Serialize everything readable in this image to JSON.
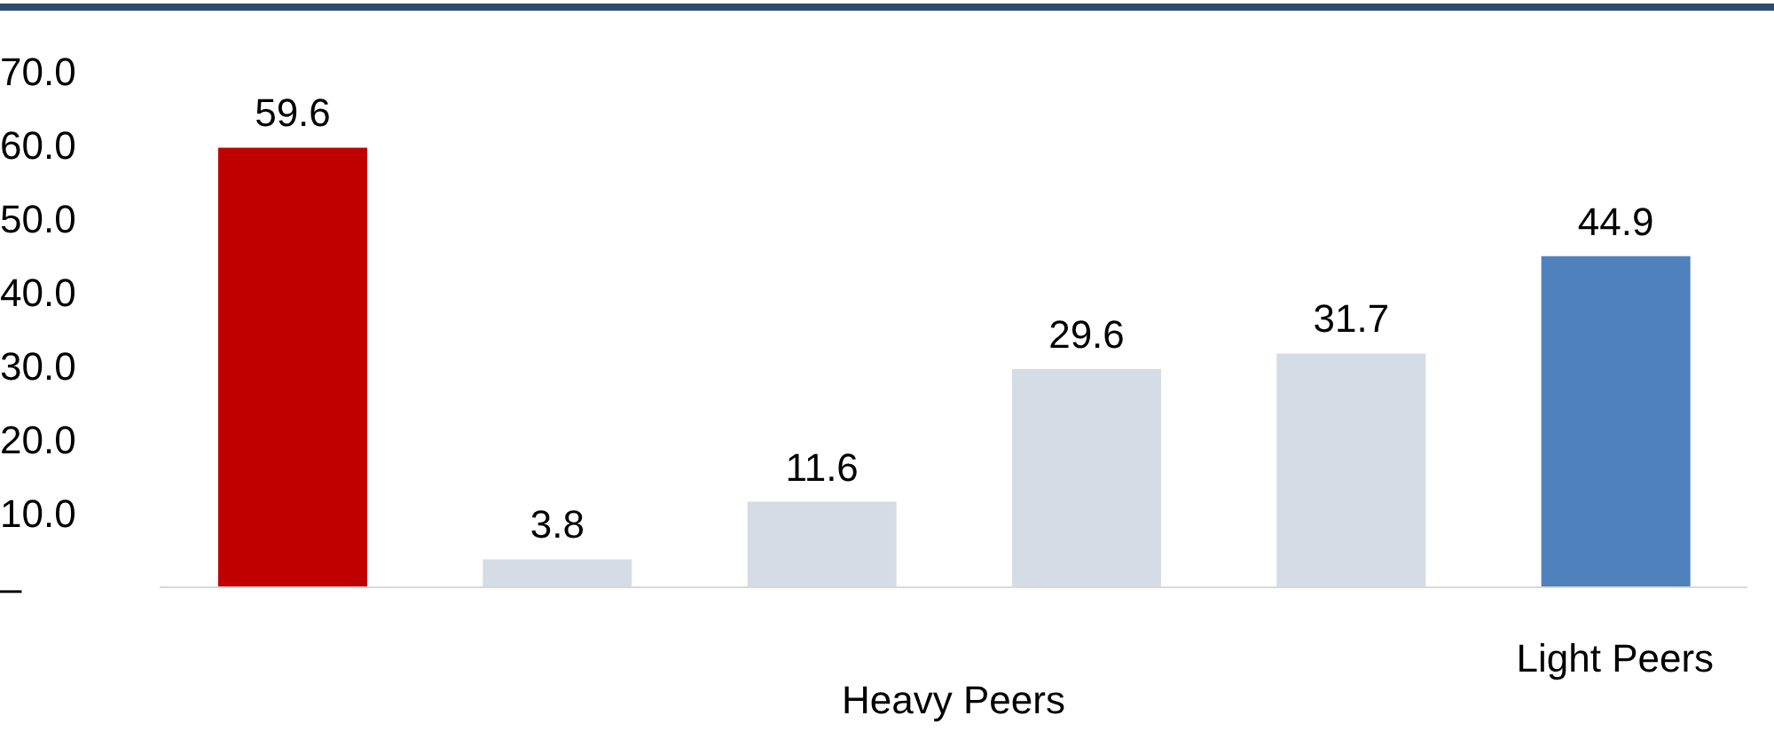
{
  "chart_data": {
    "type": "bar",
    "categories": [
      null,
      null,
      null,
      null,
      null,
      "Light Peers"
    ],
    "values": [
      59.6,
      3.8,
      11.6,
      29.6,
      31.7,
      44.9
    ],
    "colors": [
      "#c00000",
      "#d6dce5",
      "#d6dce5",
      "#d6dce5",
      "#d6dce5",
      "#4f81bd"
    ],
    "ylim": [
      0,
      70
    ],
    "yticks": [
      {
        "value": 0,
        "label": "–"
      },
      {
        "value": 10,
        "label": "10.0"
      },
      {
        "value": 20,
        "label": "20.0"
      },
      {
        "value": 30,
        "label": "30.0"
      },
      {
        "value": 40,
        "label": "40.0"
      },
      {
        "value": 50,
        "label": "50.0"
      },
      {
        "value": 60,
        "label": "60.0"
      },
      {
        "value": 70,
        "label": "70.0"
      }
    ],
    "data_labels": true,
    "grid": false,
    "annotations": [
      "Heavy Peers"
    ]
  }
}
